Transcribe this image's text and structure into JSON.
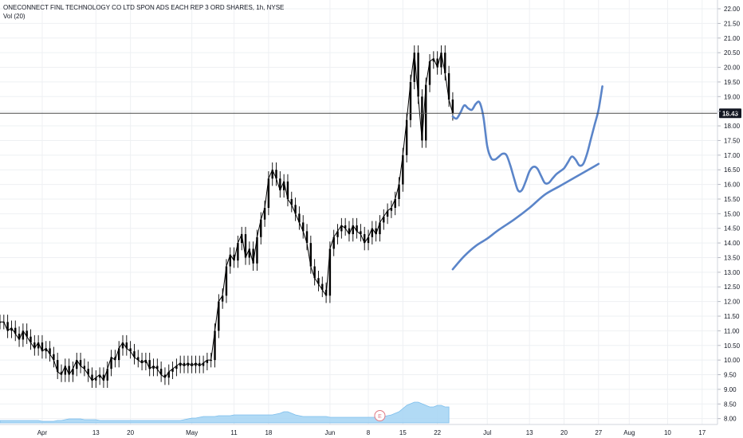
{
  "legend": {
    "symbol": "ONECONNECT FINL TECHNOLOGY CO LTD SPON ADS EACH REP 3 ORD SHARES, 1h, NYSE",
    "volume": "Vol (20)"
  },
  "colors": {
    "candle": "#000000",
    "volume_fill": "#a9d6f5",
    "volume_stroke": "#6db7ea",
    "drawing": "#5b85c9",
    "price_line": "#4a4a4a",
    "grid": "#eef0f3",
    "earnings_marker": "#e07a85"
  },
  "earnings_marker": {
    "label": "E",
    "x": 99
  },
  "last_price": {
    "label": "18.43",
    "value": 18.43
  },
  "chart_data": {
    "type": "line",
    "title": "",
    "xlabel": "",
    "ylabel": "",
    "x_unit": "trading days from left edge",
    "ylim": [
      7.8,
      22.3
    ],
    "xlim": [
      0,
      187
    ],
    "grid": true,
    "y_ticks": [
      "8.00",
      "8.50",
      "9.00",
      "9.50",
      "10.00",
      "10.50",
      "11.00",
      "11.50",
      "12.00",
      "12.50",
      "13.00",
      "13.50",
      "14.00",
      "14.50",
      "15.00",
      "15.50",
      "16.00",
      "16.50",
      "17.00",
      "17.50",
      "18.00",
      "18.50",
      "19.00",
      "19.50",
      "20.00",
      "20.50",
      "21.00",
      "21.50",
      "22.00"
    ],
    "x_ticks": [
      {
        "label": "Apr",
        "x": 11
      },
      {
        "label": "13",
        "x": 25
      },
      {
        "label": "20",
        "x": 34
      },
      {
        "label": "May",
        "x": 50
      },
      {
        "label": "11",
        "x": 61
      },
      {
        "label": "18",
        "x": 70
      },
      {
        "label": "Jun",
        "x": 86
      },
      {
        "label": "8",
        "x": 96
      },
      {
        "label": "15",
        "x": 105
      },
      {
        "label": "22",
        "x": 114
      },
      {
        "label": "Jul",
        "x": 127
      },
      {
        "label": "13",
        "x": 138
      },
      {
        "label": "20",
        "x": 147
      },
      {
        "label": "27",
        "x": 156
      },
      {
        "label": "Aug",
        "x": 164
      },
      {
        "label": "10",
        "x": 174
      },
      {
        "label": "17",
        "x": 183
      }
    ],
    "series": [
      {
        "kind": "price",
        "points": [
          [
            0,
            11.3
          ],
          [
            1,
            11.3
          ],
          [
            2,
            11.0
          ],
          [
            3,
            11.1
          ],
          [
            4,
            10.9
          ],
          [
            5,
            10.7
          ],
          [
            6,
            11.0
          ],
          [
            7,
            10.8
          ],
          [
            8,
            10.6
          ],
          [
            9,
            10.4
          ],
          [
            10,
            10.6
          ],
          [
            11,
            10.3
          ],
          [
            12,
            10.4
          ],
          [
            13,
            10.2
          ],
          [
            14,
            10.0
          ],
          [
            15,
            9.6
          ],
          [
            16,
            9.5
          ],
          [
            17,
            9.8
          ],
          [
            18,
            9.5
          ],
          [
            19,
            9.7
          ],
          [
            20,
            10.0
          ],
          [
            21,
            9.8
          ],
          [
            22,
            9.7
          ],
          [
            23,
            9.5
          ],
          [
            24,
            9.3
          ],
          [
            25,
            9.4
          ],
          [
            26,
            9.5
          ],
          [
            27,
            9.3
          ],
          [
            28,
            9.7
          ],
          [
            29,
            10.1
          ],
          [
            30,
            10.0
          ],
          [
            31,
            10.4
          ],
          [
            32,
            10.6
          ],
          [
            33,
            10.4
          ],
          [
            34,
            10.3
          ],
          [
            35,
            10.1
          ],
          [
            36,
            10.0
          ],
          [
            37,
            9.9
          ],
          [
            38,
            10.0
          ],
          [
            39,
            9.7
          ],
          [
            40,
            9.8
          ],
          [
            41,
            9.7
          ],
          [
            42,
            9.5
          ],
          [
            43,
            9.4
          ],
          [
            44,
            9.6
          ],
          [
            45,
            9.7
          ],
          [
            46,
            9.8
          ],
          [
            47,
            9.9
          ],
          [
            48,
            9.8
          ],
          [
            49,
            9.9
          ],
          [
            50,
            9.8
          ],
          [
            51,
            9.9
          ],
          [
            52,
            9.8
          ],
          [
            53,
            9.9
          ],
          [
            54,
            10.0
          ],
          [
            55,
            10.0
          ],
          [
            56,
            11.0
          ],
          [
            57,
            12.0
          ],
          [
            58,
            12.2
          ],
          [
            59,
            13.2
          ],
          [
            60,
            13.6
          ],
          [
            61,
            13.4
          ],
          [
            62,
            14.0
          ],
          [
            63,
            14.3
          ],
          [
            64,
            13.5
          ],
          [
            65,
            13.8
          ],
          [
            66,
            13.3
          ],
          [
            67,
            14.2
          ],
          [
            68,
            14.8
          ],
          [
            69,
            15.2
          ],
          [
            70,
            16.2
          ],
          [
            71,
            16.5
          ],
          [
            72,
            16.2
          ],
          [
            73,
            15.8
          ],
          [
            74,
            16.1
          ],
          [
            75,
            15.5
          ],
          [
            76,
            15.3
          ],
          [
            77,
            15.0
          ],
          [
            78,
            14.7
          ],
          [
            79,
            14.4
          ],
          [
            80,
            14.0
          ],
          [
            81,
            13.2
          ],
          [
            82,
            12.8
          ],
          [
            83,
            12.6
          ],
          [
            84,
            12.4
          ],
          [
            85,
            12.2
          ],
          [
            86,
            13.8
          ],
          [
            87,
            14.2
          ],
          [
            88,
            14.4
          ],
          [
            89,
            14.6
          ],
          [
            90,
            14.5
          ],
          [
            91,
            14.3
          ],
          [
            92,
            14.6
          ],
          [
            93,
            14.4
          ],
          [
            94,
            14.3
          ],
          [
            95,
            14.0
          ],
          [
            96,
            14.2
          ],
          [
            97,
            14.5
          ],
          [
            98,
            14.3
          ],
          [
            99,
            14.7
          ],
          [
            100,
            14.9
          ],
          [
            101,
            15.1
          ],
          [
            102,
            15.2
          ],
          [
            103,
            15.5
          ],
          [
            104,
            16.0
          ],
          [
            105,
            17.0
          ],
          [
            106,
            18.2
          ],
          [
            107,
            19.5
          ],
          [
            108,
            20.5
          ],
          [
            109,
            19.0
          ],
          [
            110,
            17.5
          ],
          [
            111,
            19.4
          ],
          [
            112,
            20.2
          ],
          [
            113,
            20.3
          ],
          [
            114,
            20.0
          ],
          [
            115,
            20.5
          ],
          [
            116,
            19.8
          ],
          [
            117,
            18.9
          ],
          [
            118,
            18.43
          ]
        ]
      },
      {
        "kind": "drawing-upper",
        "points": [
          [
            118,
            18.32
          ],
          [
            119,
            18.25
          ],
          [
            120,
            18.45
          ],
          [
            121,
            18.7
          ],
          [
            122,
            18.6
          ],
          [
            123,
            18.55
          ],
          [
            124,
            18.75
          ],
          [
            125,
            18.8
          ],
          [
            126,
            18.3
          ],
          [
            127,
            17.3
          ],
          [
            128,
            16.9
          ],
          [
            129,
            16.85
          ],
          [
            130,
            16.95
          ],
          [
            131,
            17.05
          ],
          [
            132,
            17.0
          ],
          [
            133,
            16.65
          ],
          [
            134,
            16.2
          ],
          [
            135,
            15.8
          ],
          [
            136,
            15.8
          ],
          [
            137,
            16.1
          ],
          [
            138,
            16.45
          ],
          [
            139,
            16.6
          ],
          [
            140,
            16.55
          ],
          [
            141,
            16.3
          ],
          [
            142,
            16.05
          ],
          [
            143,
            16.05
          ],
          [
            144,
            16.2
          ],
          [
            145,
            16.35
          ],
          [
            146,
            16.45
          ],
          [
            147,
            16.55
          ],
          [
            148,
            16.75
          ],
          [
            149,
            16.95
          ],
          [
            150,
            16.85
          ],
          [
            151,
            16.65
          ],
          [
            152,
            16.7
          ],
          [
            153,
            17.05
          ],
          [
            154,
            17.55
          ],
          [
            155,
            18.05
          ],
          [
            156,
            18.55
          ],
          [
            157,
            19.35
          ]
        ]
      },
      {
        "kind": "drawing-lower",
        "points": [
          [
            118,
            13.1
          ],
          [
            121,
            13.55
          ],
          [
            124,
            13.9
          ],
          [
            127,
            14.15
          ],
          [
            130,
            14.45
          ],
          [
            134,
            14.8
          ],
          [
            138,
            15.2
          ],
          [
            142,
            15.65
          ],
          [
            146,
            15.95
          ],
          [
            150,
            16.25
          ],
          [
            154,
            16.55
          ],
          [
            156,
            16.7
          ]
        ]
      }
    ],
    "volume": [
      3,
      3,
      3,
      3,
      3,
      3,
      3,
      3,
      3,
      3,
      3,
      2,
      2,
      2,
      2,
      3,
      3,
      4,
      5,
      5,
      5,
      5,
      4,
      4,
      4,
      4,
      3,
      3,
      3,
      3,
      3,
      3,
      3,
      3,
      3,
      3,
      3,
      3,
      3,
      3,
      3,
      3,
      3,
      3,
      3,
      3,
      3,
      3,
      4,
      5,
      6,
      6,
      7,
      8,
      8,
      8,
      8,
      9,
      9,
      9,
      9,
      10,
      10,
      10,
      10,
      10,
      10,
      10,
      10,
      10,
      10,
      10,
      11,
      12,
      14,
      14,
      12,
      10,
      9,
      8,
      8,
      8,
      8,
      8,
      8,
      8,
      7,
      7,
      7,
      7,
      7,
      7,
      7,
      7,
      7,
      7,
      7,
      7,
      7,
      8,
      8,
      9,
      10,
      12,
      14,
      18,
      22,
      24,
      26,
      26,
      24,
      22,
      20,
      20,
      22,
      22,
      20,
      20
    ]
  }
}
